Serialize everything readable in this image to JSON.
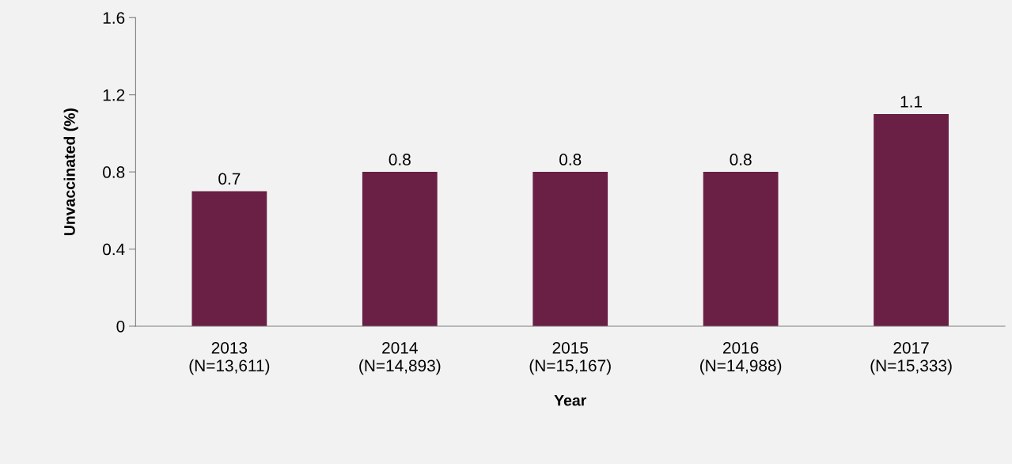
{
  "chart_data": {
    "type": "bar",
    "xlabel": "Year",
    "ylabel": "Unvaccinated (%)",
    "categories": [
      "2013\n(N=13,611)",
      "2014\n(N=14,893)",
      "2015\n(N=15,167)",
      "2016\n(N=14,988)",
      "2017\n(N=15,333)"
    ],
    "values": [
      0.7,
      0.8,
      0.8,
      0.8,
      1.1
    ],
    "color": "#6a1f45",
    "ylim": [
      0,
      1.6
    ],
    "yticks": [
      0,
      0.4,
      0.8,
      1.2,
      1.6
    ],
    "data_labels": true,
    "grid": false,
    "legend": false
  }
}
